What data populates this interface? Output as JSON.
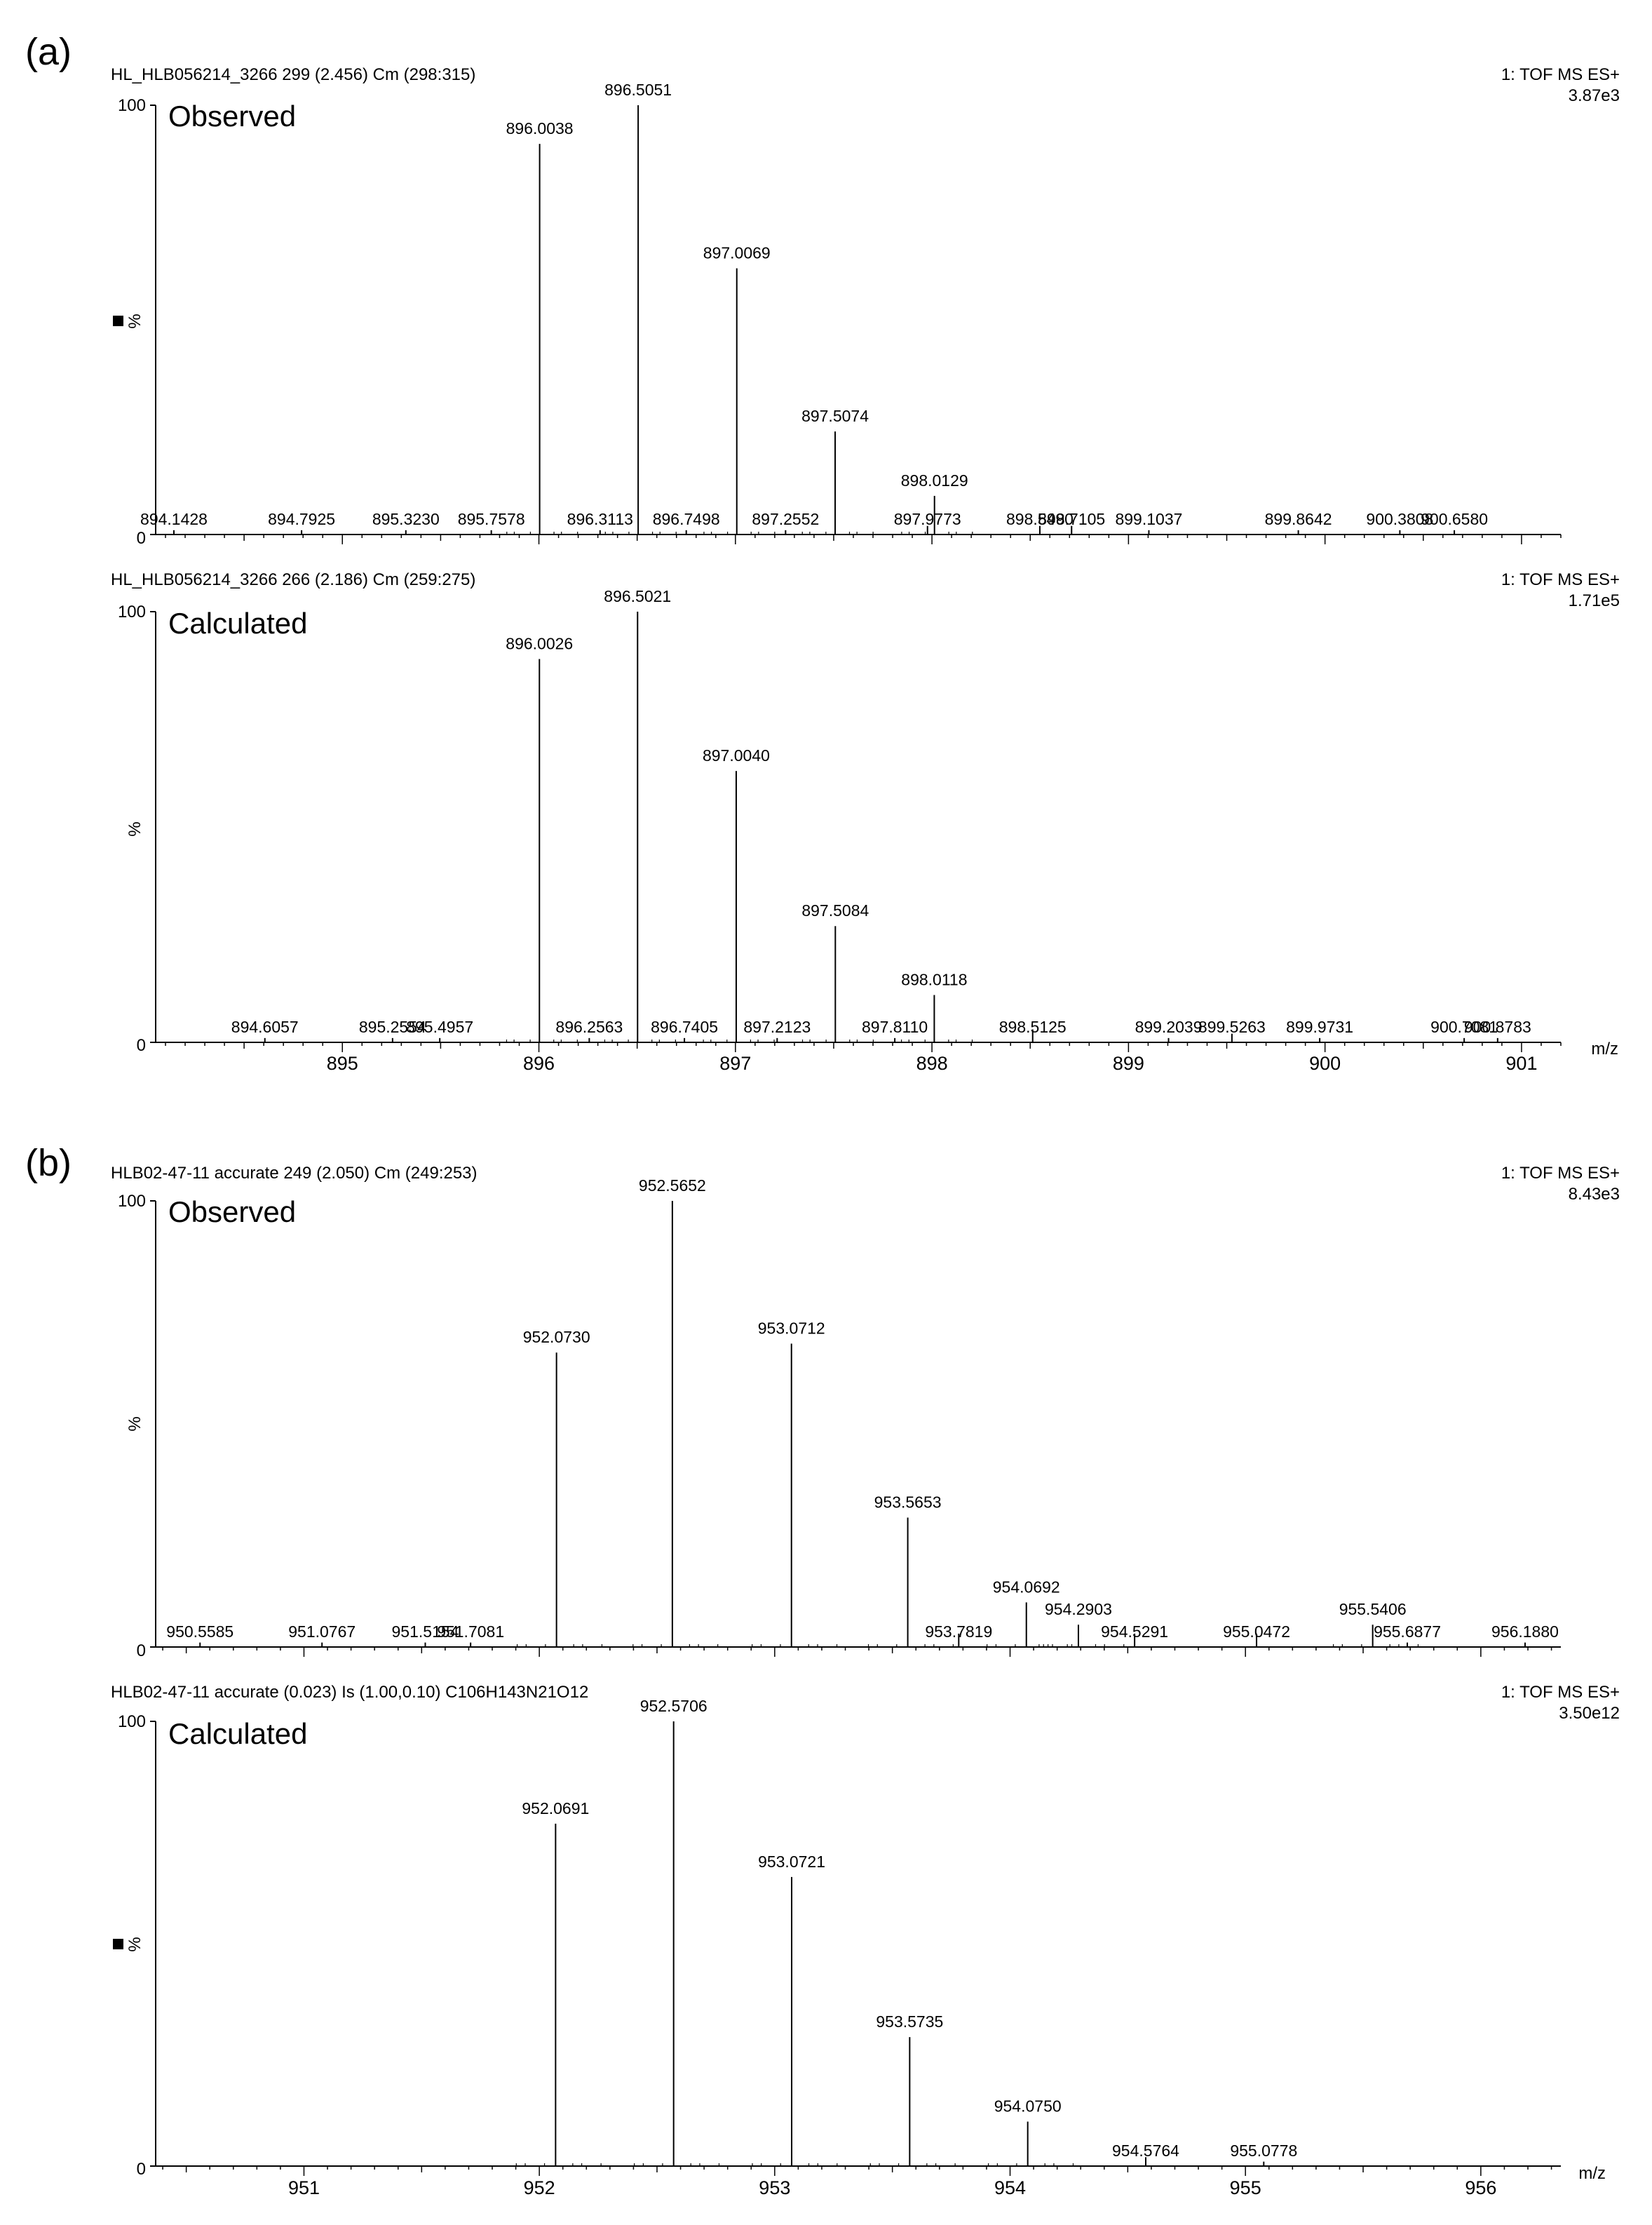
{
  "figure": {
    "panels": [
      {
        "label": "(a)",
        "spectra": [
          {
            "name": "Observed",
            "header_left": "HL_HLB056214_3266 299 (2.456) Cm (298:315)",
            "header_right_1": "1: TOF MS ES+",
            "header_right_2": "3.87e3",
            "y_label": "%",
            "y_ticks": [
              "100",
              "0"
            ],
            "marker": true,
            "x_ticks": [],
            "x_axis_label": ""
          },
          {
            "name": "Calculated",
            "header_left": "HL_HLB056214_3266 266 (2.186) Cm (259:275)",
            "header_right_1": "1: TOF MS ES+",
            "header_right_2": "1.71e5",
            "y_label": "%",
            "y_ticks": [
              "100",
              "0"
            ],
            "marker": false,
            "x_ticks": [
              "895",
              "896",
              "897",
              "898",
              "899",
              "900",
              "901"
            ],
            "x_axis_label": "m/z"
          }
        ]
      },
      {
        "label": "(b)",
        "spectra": [
          {
            "name": "Observed",
            "header_left": "HLB02-47-11 accurate 249 (2.050) Cm (249:253)",
            "header_right_1": "1: TOF MS ES+",
            "header_right_2": "8.43e3",
            "y_label": "%",
            "y_ticks": [
              "100",
              "0"
            ],
            "marker": false,
            "x_ticks": [],
            "x_axis_label": ""
          },
          {
            "name": "Calculated",
            "header_left": "HLB02-47-11 accurate  (0.023) Is (1.00,0.10) C106H143N21O12",
            "header_right_1": "1: TOF MS ES+",
            "header_right_2": "3.50e12",
            "y_label": "%",
            "y_ticks": [
              "100",
              "0"
            ],
            "marker": true,
            "x_ticks": [
              "951",
              "952",
              "953",
              "954",
              "955",
              "956"
            ],
            "x_axis_label": "m/z"
          }
        ]
      }
    ]
  },
  "chart_data": [
    {
      "type": "bar",
      "title": "Observed",
      "panel": "(a)",
      "xlabel": "m/z",
      "ylabel": "%",
      "xlim": [
        894.05,
        901.2
      ],
      "ylim": [
        0,
        100
      ],
      "peaks": [
        {
          "mz": 894.1428,
          "intensity": 1,
          "label": "894.1428"
        },
        {
          "mz": 894.7925,
          "intensity": 1,
          "label": "894.7925"
        },
        {
          "mz": 895.323,
          "intensity": 1,
          "label": "895.3230"
        },
        {
          "mz": 895.7578,
          "intensity": 1,
          "label": "895.7578"
        },
        {
          "mz": 896.0038,
          "intensity": 91,
          "label": "896.0038"
        },
        {
          "mz": 896.3113,
          "intensity": 1,
          "label": "896.3113"
        },
        {
          "mz": 896.5051,
          "intensity": 100,
          "label": "896.5051"
        },
        {
          "mz": 896.7498,
          "intensity": 1,
          "label": "896.7498"
        },
        {
          "mz": 897.0069,
          "intensity": 62,
          "label": "897.0069"
        },
        {
          "mz": 897.2552,
          "intensity": 1,
          "label": "897.2552"
        },
        {
          "mz": 897.5074,
          "intensity": 24,
          "label": "897.5074"
        },
        {
          "mz": 897.9773,
          "intensity": 2,
          "label": "897.9773"
        },
        {
          "mz": 898.0129,
          "intensity": 9,
          "label": "898.0129"
        },
        {
          "mz": 898.549,
          "intensity": 2,
          "label": "898.5490"
        },
        {
          "mz": 898.7105,
          "intensity": 2,
          "label": "898.7105"
        },
        {
          "mz": 899.1037,
          "intensity": 1,
          "label": "899.1037"
        },
        {
          "mz": 899.8642,
          "intensity": 1,
          "label": "899.8642"
        },
        {
          "mz": 900.3808,
          "intensity": 1,
          "label": "900.3808"
        },
        {
          "mz": 900.658,
          "intensity": 1,
          "label": "900.6580"
        }
      ]
    },
    {
      "type": "bar",
      "title": "Calculated",
      "panel": "(a)",
      "xlabel": "m/z",
      "ylabel": "%",
      "xlim": [
        894.05,
        901.2
      ],
      "ylim": [
        0,
        100
      ],
      "peaks": [
        {
          "mz": 894.6057,
          "intensity": 1,
          "label": "894.6057"
        },
        {
          "mz": 895.2554,
          "intensity": 1,
          "label": "895.2554"
        },
        {
          "mz": 895.4957,
          "intensity": 1,
          "label": "895.4957"
        },
        {
          "mz": 896.0026,
          "intensity": 89,
          "label": "896.0026"
        },
        {
          "mz": 896.2563,
          "intensity": 1,
          "label": "896.2563"
        },
        {
          "mz": 896.5021,
          "intensity": 100,
          "label": "896.5021"
        },
        {
          "mz": 896.7405,
          "intensity": 1,
          "label": "896.7405"
        },
        {
          "mz": 897.004,
          "intensity": 63,
          "label": "897.0040"
        },
        {
          "mz": 897.2123,
          "intensity": 1,
          "label": "897.2123"
        },
        {
          "mz": 897.5084,
          "intensity": 27,
          "label": "897.5084"
        },
        {
          "mz": 897.811,
          "intensity": 1,
          "label": "897.8110"
        },
        {
          "mz": 898.0118,
          "intensity": 11,
          "label": "898.0118"
        },
        {
          "mz": 898.5125,
          "intensity": 3,
          "label": "898.5125"
        },
        {
          "mz": 899.2039,
          "intensity": 1,
          "label": "899.2039"
        },
        {
          "mz": 899.5263,
          "intensity": 2,
          "label": "899.5263"
        },
        {
          "mz": 899.9731,
          "intensity": 1,
          "label": "899.9731"
        },
        {
          "mz": 900.7081,
          "intensity": 1,
          "label": "900.7081"
        },
        {
          "mz": 900.8783,
          "intensity": 1,
          "label": "900.8783"
        }
      ]
    },
    {
      "type": "bar",
      "title": "Observed",
      "panel": "(b)",
      "xlabel": "m/z",
      "ylabel": "%",
      "xlim": [
        950.37,
        956.34
      ],
      "ylim": [
        0,
        100
      ],
      "peaks": [
        {
          "mz": 950.5585,
          "intensity": 1,
          "label": "950.5585"
        },
        {
          "mz": 951.0767,
          "intensity": 1,
          "label": "951.0767"
        },
        {
          "mz": 951.5154,
          "intensity": 1,
          "label": "951.5154"
        },
        {
          "mz": 951.7081,
          "intensity": 1,
          "label": "951.7081"
        },
        {
          "mz": 952.073,
          "intensity": 66,
          "label": "952.0730"
        },
        {
          "mz": 952.5652,
          "intensity": 100,
          "label": "952.5652"
        },
        {
          "mz": 953.0712,
          "intensity": 68,
          "label": "953.0712"
        },
        {
          "mz": 953.5653,
          "intensity": 29,
          "label": "953.5653"
        },
        {
          "mz": 953.7819,
          "intensity": 3,
          "label": "953.7819"
        },
        {
          "mz": 954.0692,
          "intensity": 10,
          "label": "954.0692"
        },
        {
          "mz": 954.2903,
          "intensity": 5,
          "label": "954.2903"
        },
        {
          "mz": 954.5291,
          "intensity": 3,
          "label": "954.5291"
        },
        {
          "mz": 955.0472,
          "intensity": 3,
          "label": "955.0472"
        },
        {
          "mz": 955.5406,
          "intensity": 5,
          "label": "955.5406"
        },
        {
          "mz": 955.6877,
          "intensity": 1,
          "label": "955.6877"
        },
        {
          "mz": 956.188,
          "intensity": 1,
          "label": "956.1880"
        }
      ]
    },
    {
      "type": "bar",
      "title": "Calculated",
      "panel": "(b)",
      "xlabel": "m/z",
      "ylabel": "%",
      "xlim": [
        950.37,
        956.34
      ],
      "ylim": [
        0,
        100
      ],
      "peaks": [
        {
          "mz": 952.0691,
          "intensity": 77,
          "label": "952.0691"
        },
        {
          "mz": 952.5706,
          "intensity": 100,
          "label": "952.5706"
        },
        {
          "mz": 953.0721,
          "intensity": 65,
          "label": "953.0721"
        },
        {
          "mz": 953.5735,
          "intensity": 29,
          "label": "953.5735"
        },
        {
          "mz": 954.075,
          "intensity": 10,
          "label": "954.0750"
        },
        {
          "mz": 954.5764,
          "intensity": 2,
          "label": "954.5764"
        },
        {
          "mz": 955.0778,
          "intensity": 1,
          "label": "955.0778"
        }
      ]
    }
  ]
}
